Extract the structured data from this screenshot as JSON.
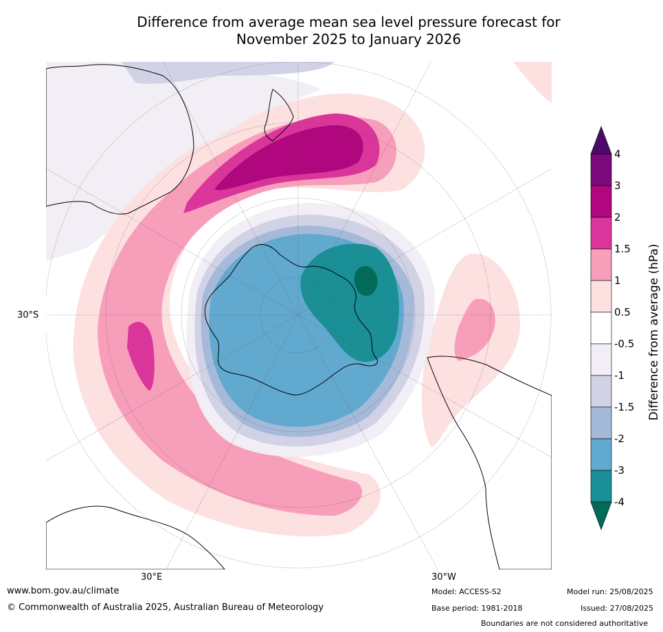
{
  "title_line1": "Difference from average mean sea level pressure forecast for",
  "title_line2": "November 2025 to January 2026",
  "map_labels": {
    "lat_30s": "30°S",
    "lon_30e": "30°E",
    "lon_30w": "30°W"
  },
  "colorbar": {
    "title": "Difference from average (hPa)",
    "ticks": [
      "4",
      "3",
      "2",
      "1.5",
      "1",
      "0.5",
      "-0.5",
      "-1",
      "-1.5",
      "-2",
      "-3",
      "-4"
    ],
    "colors": [
      "#4b0a6b",
      "#7a0a7c",
      "#b0067e",
      "#d9359b",
      "#f79eba",
      "#fde0e0",
      "#ffffff",
      "#f2eef5",
      "#d2d2e6",
      "#a5bad9",
      "#62a9cf",
      "#1a8f96",
      "#006b58"
    ]
  },
  "footer": {
    "website": "www.bom.gov.au/climate",
    "copyright": "© Commonwealth of Australia 2025, Australian Bureau of Meteorology",
    "model": "Model: ACCESS-S2",
    "base_period": "Base period: 1981-2018",
    "model_run": "Model run: 25/08/2025",
    "issued": "Issued: 27/08/2025",
    "disclaimer": "Boundaries are not considered authoritative"
  }
}
